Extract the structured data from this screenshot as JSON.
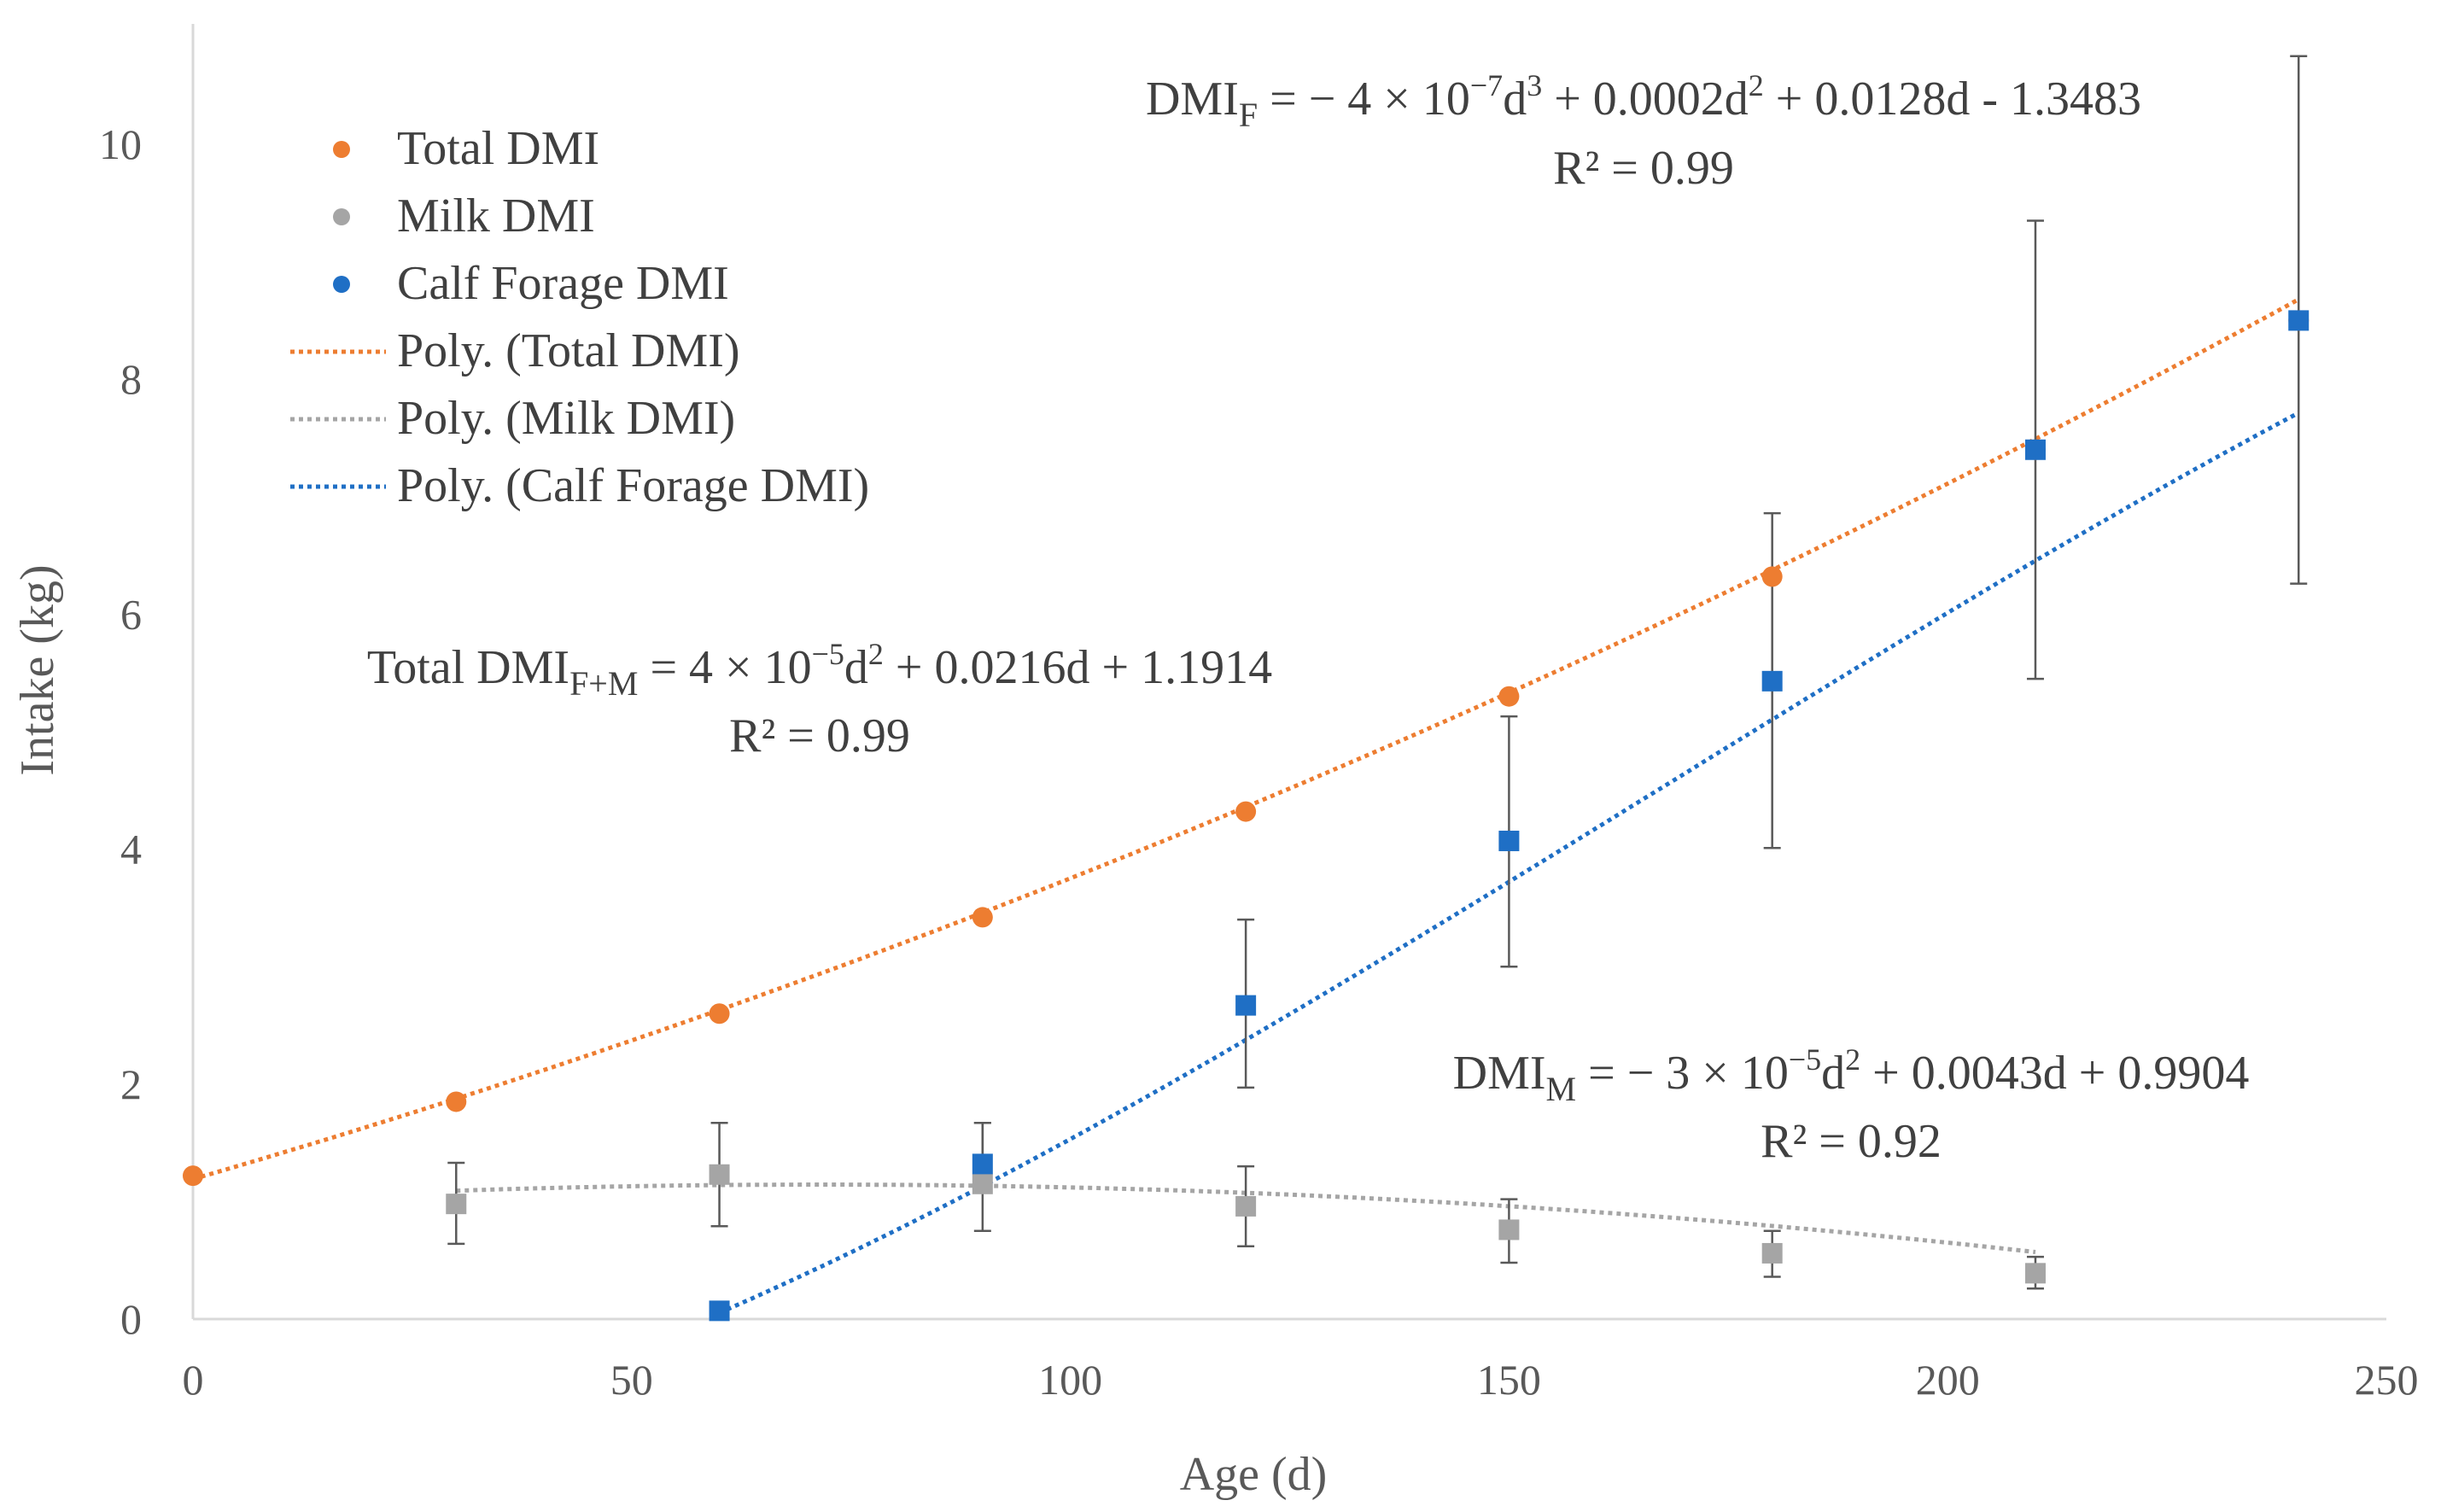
{
  "chart_data": {
    "type": "scatter",
    "xlabel": "Age (d)",
    "ylabel": "Intake (kg)",
    "xlim": [
      0,
      250
    ],
    "ylim": [
      0,
      10.5
    ],
    "x_ticks": [
      0,
      50,
      100,
      150,
      200,
      250
    ],
    "y_ticks": [
      0,
      2,
      4,
      6,
      8,
      10
    ],
    "x_tick_labels": [
      "0",
      "50",
      "100",
      "150",
      "200",
      "250"
    ],
    "y_tick_labels": [
      "0",
      "2",
      "4",
      "6",
      "8",
      "10"
    ],
    "grid": false,
    "legend_position": "top-left",
    "series": [
      {
        "name": "Total  DMI",
        "color": "#ED7D31",
        "marker": "circle",
        "x": [
          0,
          30,
          60,
          90,
          120,
          150,
          180,
          210,
          240
        ],
        "y": [
          1.22,
          1.85,
          2.6,
          3.42,
          4.32,
          5.3,
          6.32,
          7.4,
          8.5
        ]
      },
      {
        "name": "Milk DMI",
        "color": "#A5A5A5",
        "marker": "square",
        "x": [
          30,
          60,
          90,
          120,
          150,
          180,
          210
        ],
        "y": [
          0.98,
          1.23,
          1.15,
          0.96,
          0.76,
          0.56,
          0.39
        ],
        "err_low": [
          0.64,
          0.79,
          0.75,
          0.62,
          0.48,
          0.36,
          0.26
        ],
        "err_high": [
          1.33,
          1.67,
          1.67,
          1.3,
          1.02,
          0.75,
          0.53
        ]
      },
      {
        "name": "Calf Forage DMI",
        "color": "#1F6FC5",
        "marker": "square",
        "x": [
          60,
          90,
          120,
          150,
          180,
          210,
          240
        ],
        "y": [
          0.07,
          1.32,
          2.67,
          4.07,
          5.43,
          7.4,
          8.5
        ],
        "err_low": [
          null,
          1.22,
          1.97,
          3.0,
          4.01,
          5.45,
          6.26
        ],
        "err_high": [
          null,
          1.67,
          3.4,
          5.13,
          6.86,
          9.35,
          10.75
        ]
      }
    ],
    "trendlines": [
      {
        "name": "Poly. (Total  DMI)",
        "color": "#ED7D31",
        "style": "dotted",
        "coefficients": [
          4e-05,
          0.0216,
          1.1914
        ],
        "x_range": [
          0,
          240
        ]
      },
      {
        "name": "Poly. (Milk DMI)",
        "color": "#A5A5A5",
        "style": "dotted",
        "coefficients": [
          -3e-05,
          0.0043,
          0.9904
        ],
        "x_range": [
          30,
          210
        ]
      },
      {
        "name": "Poly. (Calf Forage DMI)",
        "color": "#1F6FC5",
        "style": "dotted",
        "coefficients": [
          -4e-07,
          0.0002,
          0.0128,
          -1.3483
        ],
        "x_range": [
          60,
          240
        ]
      }
    ]
  },
  "annotations": {
    "forage": {
      "prefix": "DMI",
      "sub": "F",
      "eq_a": " = − 4 × 10",
      "exp1": "−7",
      "eq_b": "d",
      "exp2": "3",
      "eq_c": " + 0.0002d",
      "exp3": "2",
      "eq_d": " + 0.0128d - 1.3483",
      "r2": "R² = 0.99"
    },
    "total": {
      "prefix": "Total DMI",
      "sub": "F+M",
      "eq_a": " = 4 × 10",
      "exp1": "−5",
      "eq_b": "d",
      "exp2": "2",
      "eq_c": " + 0.0216d + 1.1914",
      "r2": "R² = 0.99"
    },
    "milk": {
      "prefix": "DMI",
      "sub": "M",
      "eq_a": "  = − 3 × 10",
      "exp1": "−5",
      "eq_b": "d",
      "exp2": "2",
      "eq_c": " + 0.0043d + 0.9904",
      "r2": "R² = 0.92"
    }
  }
}
